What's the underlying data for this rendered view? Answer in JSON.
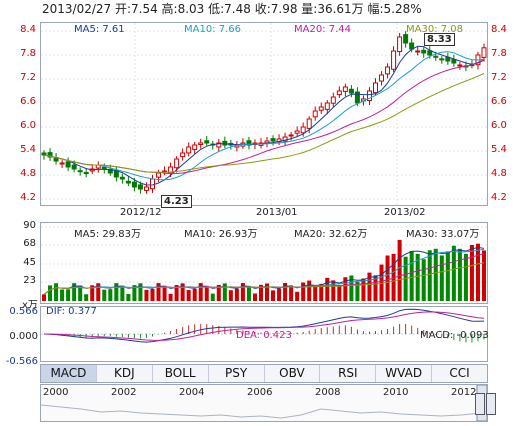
{
  "header": {
    "text": "2013/02/27 开:7.54  高:8.03  低:7.48  收:7.98  量:36.61万  幅:5.28%"
  },
  "main": {
    "ma": [
      {
        "label": "MA5: 7.61",
        "color": "#1a3c9a"
      },
      {
        "label": "MA10: 7.66",
        "color": "#1aa0c8"
      },
      {
        "label": "MA20: 7.44",
        "color": "#c0209a"
      },
      {
        "label": "MA30: 7.08",
        "color": "#8a9a10"
      }
    ],
    "price_ticks": [
      "8.4",
      "7.8",
      "7.2",
      "6.6",
      "6.0",
      "5.4",
      "4.8",
      "4.2"
    ],
    "date_labels": [
      "2012/12",
      "2013/01",
      "2013/02"
    ],
    "high_label": "8.33",
    "low_label": "4.23"
  },
  "volume": {
    "ma": [
      {
        "label": "MA5: 29.83万",
        "color": "#1a3c9a"
      },
      {
        "label": "MA10: 26.93万",
        "color": "#1aa0c8"
      },
      {
        "label": "MA20: 32.62万",
        "color": "#c0209a"
      },
      {
        "label": "MA30: 33.07万",
        "color": "#8a9a10"
      }
    ],
    "ticks": [
      "90",
      "68",
      "45",
      "23"
    ],
    "unit": "x万"
  },
  "macd": {
    "dif": "DIF: 0.377",
    "dea": "DEA: 0.423",
    "macd": "MACD: -0.093",
    "ticks": [
      "0.566",
      "0.000",
      "-0.566"
    ]
  },
  "tabs": [
    "MACD",
    "KDJ",
    "BOLL",
    "PSY",
    "OBV",
    "RSI",
    "WVAD",
    "CCI"
  ],
  "active_tab": "MACD",
  "navigator": {
    "years": [
      "2000",
      "2002",
      "2004",
      "2006",
      "2008",
      "2010",
      "2012"
    ]
  },
  "chart_data": {
    "type": "candlestick",
    "price_axis": [
      4.2,
      8.4
    ],
    "close_series": [
      5.3,
      5.25,
      5.15,
      5.1,
      5.0,
      4.95,
      4.9,
      4.85,
      4.95,
      5.05,
      4.95,
      4.85,
      4.75,
      4.7,
      4.6,
      4.5,
      4.45,
      4.5,
      4.7,
      4.85,
      4.9,
      5.0,
      5.2,
      5.35,
      5.5,
      5.55,
      5.6,
      5.6,
      5.55,
      5.6,
      5.55,
      5.55,
      5.55,
      5.6,
      5.55,
      5.6,
      5.6,
      5.65,
      5.65,
      5.7,
      5.75,
      5.8,
      5.9,
      6.0,
      6.2,
      6.4,
      6.5,
      6.6,
      6.75,
      6.9,
      7.0,
      6.85,
      6.6,
      6.7,
      6.9,
      7.1,
      7.3,
      7.5,
      7.9,
      8.25,
      8.1,
      7.95,
      7.9,
      7.85,
      7.8,
      7.75,
      7.7,
      7.65,
      7.6,
      7.55,
      7.5,
      7.55,
      7.8,
      7.98
    ],
    "volume_axis": [
      0,
      90
    ]
  }
}
